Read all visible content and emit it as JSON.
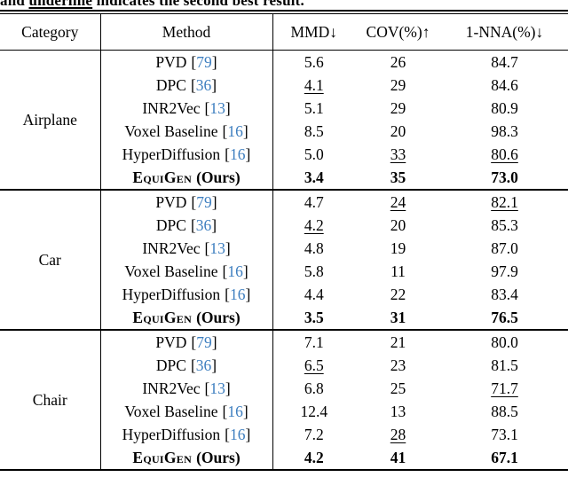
{
  "caption": {
    "prefix": "and ",
    "underlined_word": "underline",
    "suffix": " indicates the second best result."
  },
  "punct": {
    "open_bracket": "[",
    "close_bracket": "]"
  },
  "header": {
    "category": "Category",
    "method": "Method",
    "mmd": "MMD↓",
    "cov": "COV(%)↑",
    "nna": "1-NNA(%)↓"
  },
  "citation_color": "#3d7ebf",
  "sections": [
    {
      "category": "Airplane",
      "rows": [
        {
          "method": "PVD",
          "cite": "79",
          "mmd": "5.6",
          "cov": "26",
          "nna": "84.7"
        },
        {
          "method": "DPC",
          "cite": "36",
          "mmd": "4.1",
          "cov": "29",
          "nna": "84.6"
        },
        {
          "method": "INR2Vec",
          "cite": "13",
          "mmd": "5.1",
          "cov": "29",
          "nna": "80.9"
        },
        {
          "method": "Voxel Baseline",
          "cite": "16",
          "mmd": "8.5",
          "cov": "20",
          "nna": "98.3"
        },
        {
          "method": "HyperDiffusion",
          "cite": "16",
          "mmd": "5.0",
          "cov": "33",
          "nna": "80.6"
        },
        {
          "method_name": "EquiGen",
          "method_suffix": "(Ours)",
          "mmd": "3.4",
          "cov": "35",
          "nna": "73.0"
        }
      ]
    },
    {
      "category": "Car",
      "rows": [
        {
          "method": "PVD",
          "cite": "79",
          "mmd": "4.7",
          "cov": "24",
          "nna": "82.1"
        },
        {
          "method": "DPC",
          "cite": "36",
          "mmd": "4.2",
          "cov": "20",
          "nna": "85.3"
        },
        {
          "method": "INR2Vec",
          "cite": "13",
          "mmd": "4.8",
          "cov": "19",
          "nna": "87.0"
        },
        {
          "method": "Voxel Baseline",
          "cite": "16",
          "mmd": "5.8",
          "cov": "11",
          "nna": "97.9"
        },
        {
          "method": "HyperDiffusion",
          "cite": "16",
          "mmd": "4.4",
          "cov": "22",
          "nna": "83.4"
        },
        {
          "method_name": "EquiGen",
          "method_suffix": "(Ours)",
          "mmd": "3.5",
          "cov": "31",
          "nna": "76.5"
        }
      ]
    },
    {
      "category": "Chair",
      "rows": [
        {
          "method": "PVD",
          "cite": "79",
          "mmd": "7.1",
          "cov": "21",
          "nna": "80.0"
        },
        {
          "method": "DPC",
          "cite": "36",
          "mmd": "6.5",
          "cov": "23",
          "nna": "81.5"
        },
        {
          "method": "INR2Vec",
          "cite": "13",
          "mmd": "6.8",
          "cov": "25",
          "nna": "71.7"
        },
        {
          "method": "Voxel Baseline",
          "cite": "16",
          "mmd": "12.4",
          "cov": "13",
          "nna": "88.5"
        },
        {
          "method": "HyperDiffusion",
          "cite": "16",
          "mmd": "7.2",
          "cov": "28",
          "nna": "73.1"
        },
        {
          "method_name": "EquiGen",
          "method_suffix": "(Ours)",
          "mmd": "4.2",
          "cov": "41",
          "nna": "67.1"
        }
      ]
    }
  ]
}
